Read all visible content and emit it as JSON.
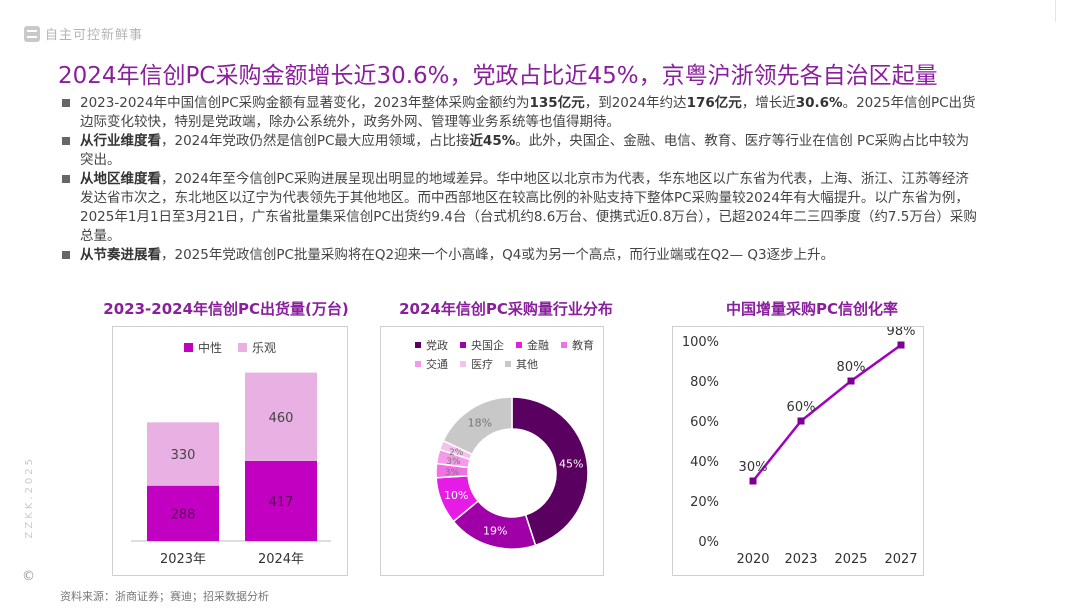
{
  "brand": {
    "name": "自主可控新鲜事"
  },
  "title": "2024年信创PC采购金额增长近30.6%，党政占比近45%，京粤沪浙领先各自治区起量",
  "bullets": [
    {
      "parts": [
        {
          "text": "2023-2024年中国信创PC采购金额有显著变化，2023年整体采购金额约为",
          "bold": false
        },
        {
          "text": "135亿元",
          "bold": true
        },
        {
          "text": "，到2024年约达",
          "bold": false
        },
        {
          "text": "176亿元",
          "bold": true
        },
        {
          "text": "，增长近",
          "bold": false
        },
        {
          "text": "30.6%",
          "bold": true
        },
        {
          "text": "。2025年信创PC出货边际变化较快，特别是党政端，除办公系统外，政务外网、管理等业务系统等也值得期待。",
          "bold": false
        }
      ]
    },
    {
      "parts": [
        {
          "text": "从行业维度看",
          "bold": true
        },
        {
          "text": "，2024年党政仍然是信创PC最大应用领域，占比接",
          "bold": false
        },
        {
          "text": "近45%",
          "bold": true
        },
        {
          "text": "。此外，央国企、金融、电信、教育、医疗等行业在信创 PC采购占比中较为突出。",
          "bold": false
        }
      ]
    },
    {
      "parts": [
        {
          "text": "从地区维度看",
          "bold": true
        },
        {
          "text": "，2024年至今信创PC采购进展呈现出明显的地域差异。华中地区以北京市为代表，华东地区以广东省为代表，上海、浙江、江苏等经济发达省市次之，东北地区以辽宁为代表领先于其他地区。而中西部地区在较高比例的补贴支持下整体PC采购量较2024年有大幅提升。以广东省为例，2025年1月1日至3月21日，广东省批量集采信创PC出货约9.4台（台式机约8.6万台、便携式近0.8万台），已超2024年二三四季度（约7.5万台）采购总量。",
          "bold": false
        }
      ]
    },
    {
      "parts": [
        {
          "text": "从节奏进展看",
          "bold": true
        },
        {
          "text": "，2025年党政信创PC批量采购将在Q2迎来一个小高峰，Q4或为另一个高点，而行业端或在Q2— Q3逐步上升。",
          "bold": false
        }
      ]
    }
  ],
  "chart_data": [
    {
      "type": "bar",
      "stacked": true,
      "title": "2023-2024年信创PC出货量(万台)",
      "categories": [
        "2023年",
        "2024年"
      ],
      "series": [
        {
          "name": "中性",
          "values": [
            288,
            417
          ],
          "color": "#c100c1"
        },
        {
          "name": "乐观",
          "values": [
            330,
            460
          ],
          "color": "#e9b1e3"
        }
      ],
      "legend": "top",
      "grid": false
    },
    {
      "type": "pie",
      "donut": true,
      "title": "2024年信创PC采购量行业分布",
      "slices": [
        {
          "name": "党政",
          "value": 45,
          "label": "45%",
          "color": "#5a0060"
        },
        {
          "name": "央国企",
          "value": 19,
          "label": "19%",
          "color": "#a000a8"
        },
        {
          "name": "金融",
          "value": 10,
          "label": "10%",
          "color": "#e61ce6"
        },
        {
          "name": "教育",
          "value": 3,
          "label": "3%",
          "color": "#f26fe6"
        },
        {
          "name": "交通",
          "value": 3,
          "label": "3%",
          "color": "#f49ae8"
        },
        {
          "name": "医疗",
          "value": 2,
          "label": "2%",
          "color": "#f5c2ef"
        },
        {
          "name": "其他",
          "value": 18,
          "label": "18%",
          "color": "#c8c8c8"
        }
      ],
      "legend": "top"
    },
    {
      "type": "line",
      "title": "中国增量采购PC信创化率",
      "x": [
        "2020",
        "2023",
        "2025",
        "2027"
      ],
      "series": [
        {
          "values": [
            30,
            60,
            80,
            98
          ],
          "labels": [
            "30%",
            "60%",
            "80%",
            "98%"
          ],
          "color": "#a000c0"
        }
      ],
      "yticks": [
        "0%",
        "20%",
        "40%",
        "60%",
        "80%",
        "100%"
      ],
      "ylim": [
        0,
        100
      ],
      "grid": false
    }
  ],
  "source": "资料来源：浙商证券；赛迪；招采数据分析",
  "watermark": "ZZKK.2025",
  "copyright": "©"
}
